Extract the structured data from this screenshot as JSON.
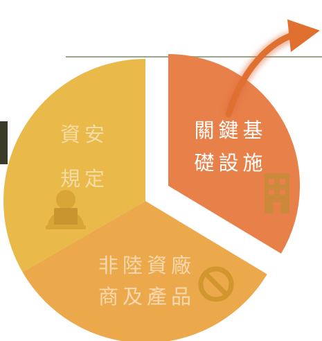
{
  "segments": [
    {
      "label_lines": [
        "資安",
        "規定"
      ]
    },
    {
      "label_lines": [
        "關鍵基",
        "礎設施"
      ]
    },
    {
      "label_lines": [
        "非陸資廠",
        "商及產品"
      ]
    }
  ]
}
